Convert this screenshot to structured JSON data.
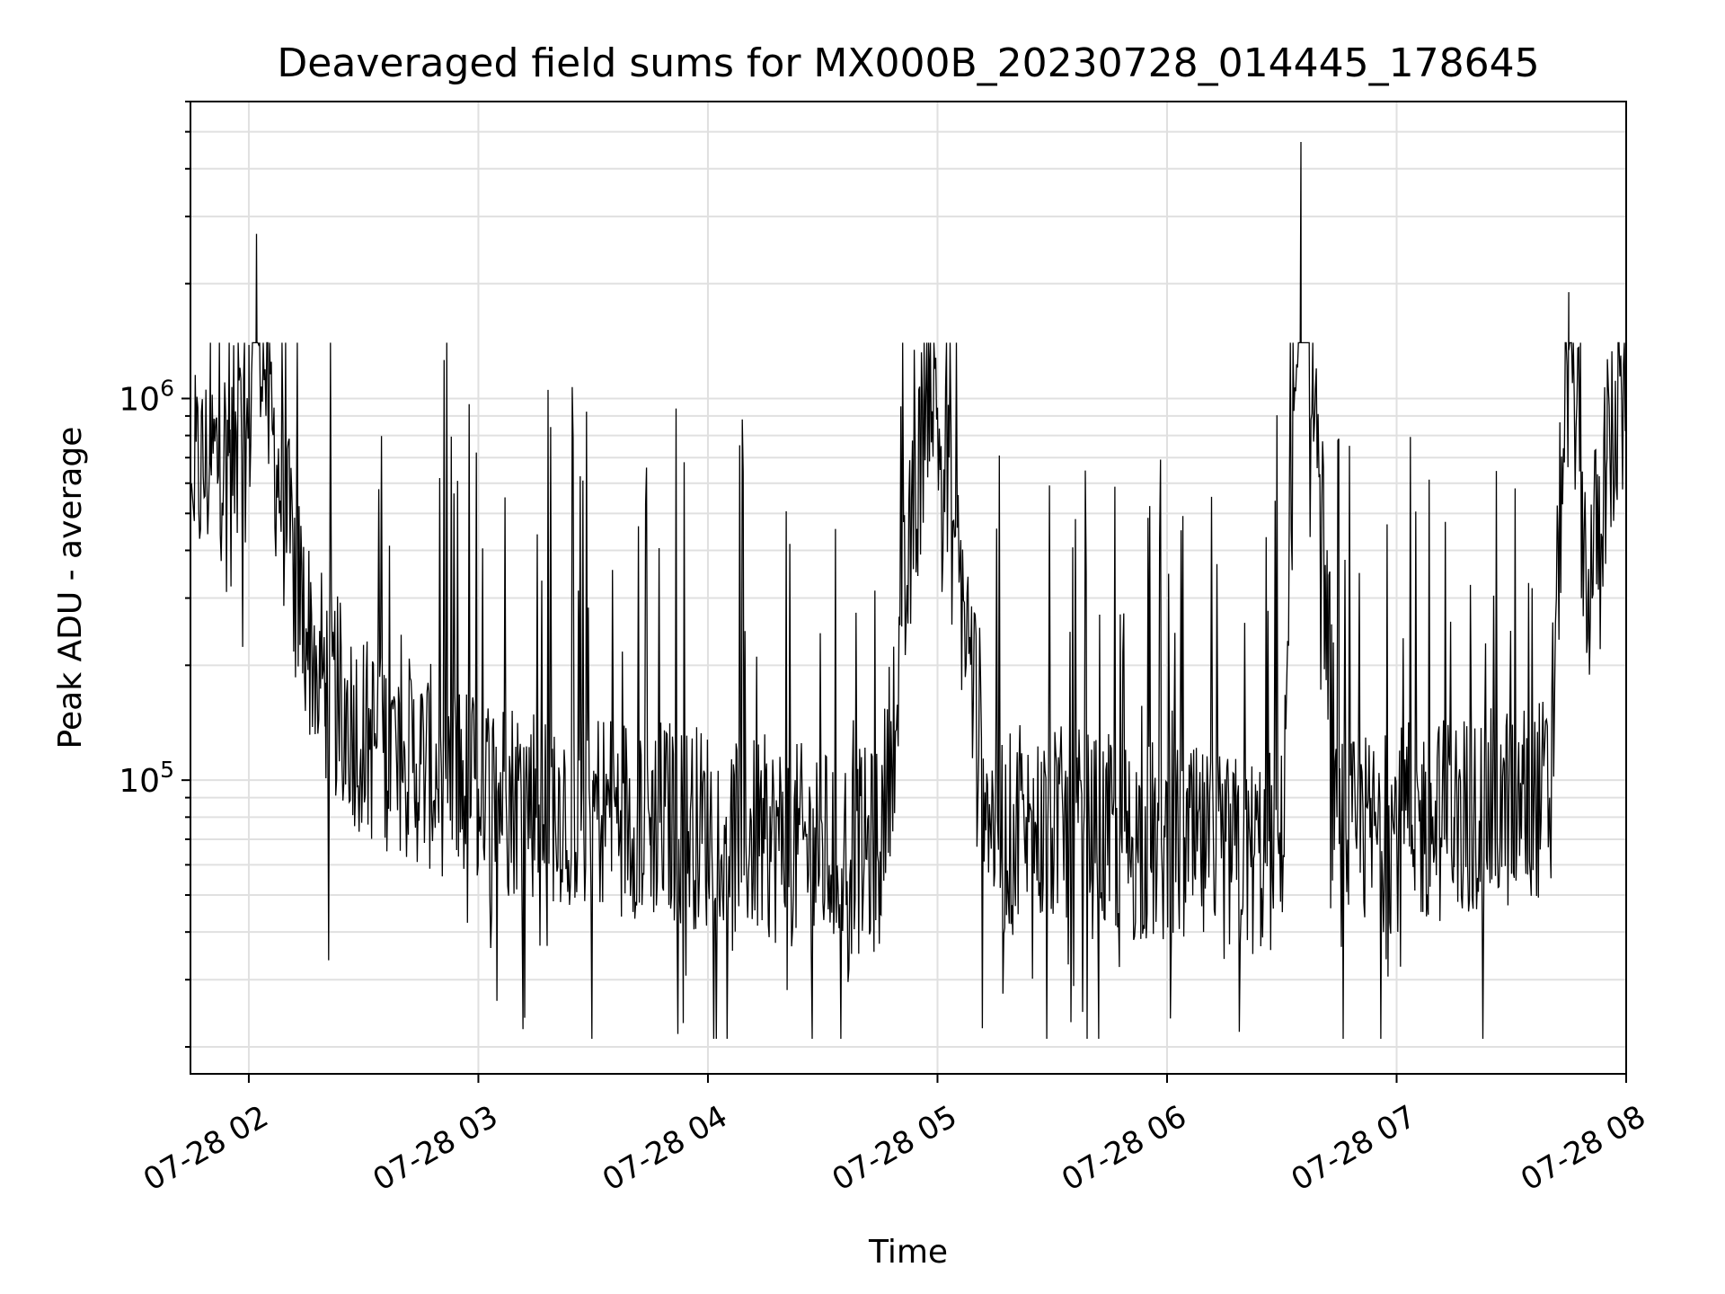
{
  "chart_data": {
    "type": "line",
    "title": "Deaveraged field sums for MX000B_20230728_014445_178645",
    "xlabel": "Time",
    "ylabel": "Peak ADU - average",
    "yscale": "log",
    "ylim": [
      17000,
      6000000
    ],
    "xlim": [
      "2023-07-28 01:44:45",
      "2023-07-28 08:00:00"
    ],
    "x_tick_labels": [
      "07-28 02",
      "07-28 03",
      "07-28 04",
      "07-28 05",
      "07-28 06",
      "07-28 07",
      "07-28 08"
    ],
    "y_tick_labels": [
      {
        "base": "10",
        "exp": "5"
      },
      {
        "base": "10",
        "exp": "6"
      }
    ],
    "grid": true,
    "line_color": "#000000",
    "grid_color": "#e0e0e0",
    "series": [
      {
        "x": [
          "2023-07-28 01:45",
          "2023-07-28 01:50",
          "2023-07-28 01:55",
          "2023-07-28 02:00",
          "2023-07-28 02:02",
          "2023-07-28 02:05",
          "2023-07-28 02:10",
          "2023-07-28 02:15",
          "2023-07-28 02:20",
          "2023-07-28 02:30",
          "2023-07-28 02:45",
          "2023-07-28 03:00",
          "2023-07-28 03:15",
          "2023-07-28 03:30",
          "2023-07-28 03:45",
          "2023-07-28 04:00",
          "2023-07-28 04:15",
          "2023-07-28 04:30",
          "2023-07-28 04:45",
          "2023-07-28 04:58",
          "2023-07-28 05:15",
          "2023-07-28 05:30",
          "2023-07-28 05:45",
          "2023-07-28 06:00",
          "2023-07-28 06:15",
          "2023-07-28 06:30",
          "2023-07-28 06:35",
          "2023-07-28 06:45",
          "2023-07-28 07:00",
          "2023-07-28 07:15",
          "2023-07-28 07:30",
          "2023-07-28 07:40",
          "2023-07-28 07:45",
          "2023-07-28 07:50",
          "2023-07-28 07:55",
          "2023-07-28 08:00"
        ],
        "y": [
          600000,
          680000,
          720000,
          800000,
          2700000,
          950000,
          450000,
          250000,
          180000,
          130000,
          110000,
          95000,
          90000,
          85000,
          80000,
          75000,
          70000,
          65000,
          65000,
          1250000,
          70000,
          75000,
          70000,
          68000,
          62000,
          65000,
          4700000,
          68000,
          75000,
          80000,
          85000,
          90000,
          1900000,
          300000,
          700000,
          900000
        ]
      }
    ]
  }
}
